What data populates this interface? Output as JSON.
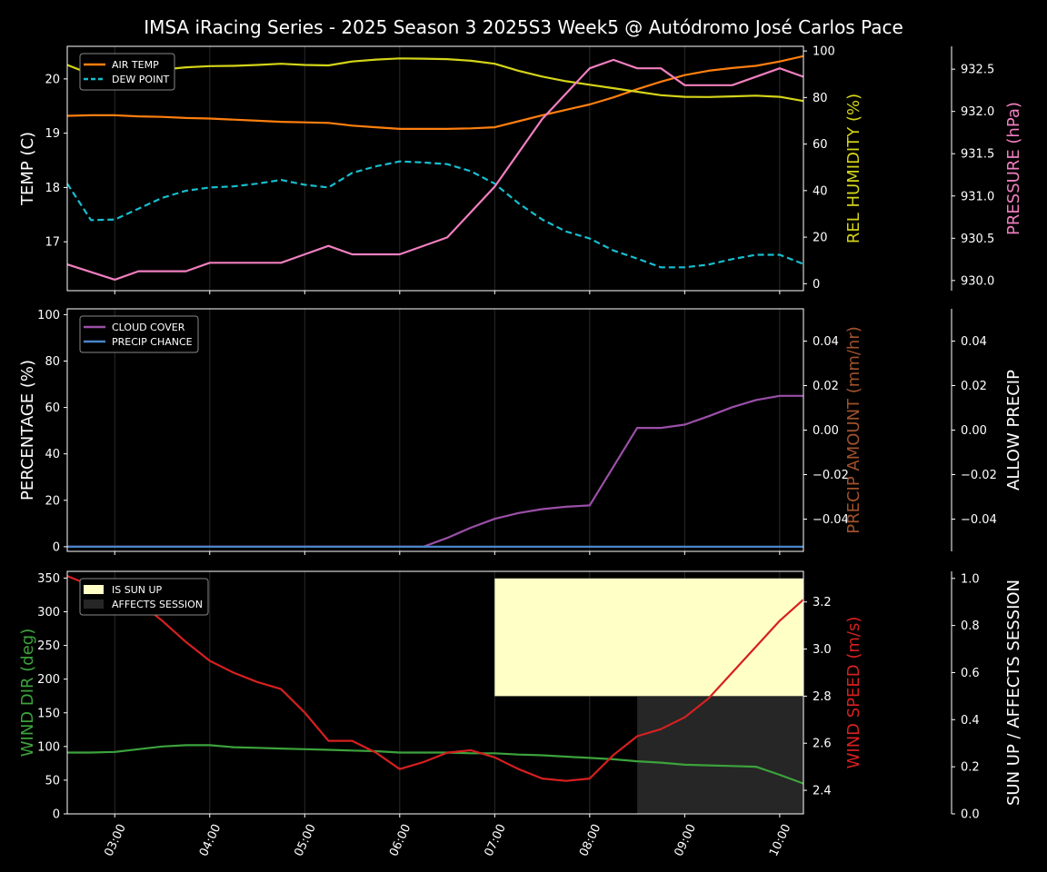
{
  "title": "IMSA iRacing Series - 2025 Season 3 2025S3 Week5 @ Autódromo José Carlos Pace",
  "x_ticks": [
    "03:00",
    "04:00",
    "05:00",
    "06:00",
    "07:00",
    "08:00",
    "09:00",
    "10:00"
  ],
  "colors": {
    "air_temp": "#ff7f0e",
    "dew_point": "#17becf",
    "rel_humidity": "#d4d419",
    "pressure": "#f07fbf",
    "cloud_cover": "#9b4fa8",
    "precip_chance": "#4a86c8",
    "precip_amount": "#a0522d",
    "wind_dir": "#3ca33c",
    "wind_speed": "#d62020",
    "sun_up": "#ffffc6",
    "affects_session": "#262626"
  },
  "chart_data": [
    {
      "type": "line",
      "x_unit": "hour",
      "xlim": [
        2.5,
        10.25
      ],
      "axes": {
        "left": {
          "label": "TEMP (C)",
          "ylim": [
            16.1,
            20.6
          ],
          "ticks": [
            17,
            18,
            19,
            20
          ]
        },
        "right": {
          "label": "REL HUMIDITY (%)",
          "ylim": [
            -3,
            102
          ],
          "ticks": [
            0,
            20,
            40,
            60,
            80,
            100
          ]
        },
        "far_right": {
          "label": "PRESSURE (hPa)",
          "ylim": [
            929.88,
            932.77
          ],
          "ticks": [
            "930.0",
            "930.5",
            "931.0",
            "931.5",
            "932.0",
            "932.5"
          ]
        }
      },
      "legend": {
        "placement": "top-left",
        "entries": [
          "AIR TEMP",
          "DEW POINT"
        ]
      },
      "series": [
        {
          "name": "AIR TEMP",
          "axis": "left",
          "style": "solid",
          "x": [
            2.5,
            2.75,
            3.0,
            3.25,
            3.5,
            3.75,
            4.0,
            4.25,
            4.5,
            4.75,
            5.0,
            5.25,
            5.5,
            5.75,
            6.0,
            6.25,
            6.5,
            6.75,
            7.0,
            7.25,
            7.5,
            7.75,
            8.0,
            8.25,
            8.5,
            8.75,
            9.0,
            9.25,
            9.5,
            9.75,
            10.0,
            10.25
          ],
          "y": [
            19.32,
            19.33,
            19.33,
            19.31,
            19.3,
            19.28,
            19.27,
            19.25,
            19.23,
            19.21,
            19.2,
            19.19,
            19.14,
            19.11,
            19.08,
            19.08,
            19.08,
            19.09,
            19.11,
            19.22,
            19.33,
            19.43,
            19.53,
            19.66,
            19.81,
            19.95,
            20.07,
            20.15,
            20.2,
            20.24,
            20.32,
            20.42
          ]
        },
        {
          "name": "DEW POINT",
          "axis": "left",
          "style": "dashed",
          "x": [
            2.5,
            2.75,
            3.0,
            3.25,
            3.5,
            3.75,
            4.0,
            4.25,
            4.5,
            4.75,
            5.0,
            5.25,
            5.5,
            5.75,
            6.0,
            6.25,
            6.5,
            6.75,
            7.0,
            7.25,
            7.5,
            7.75,
            8.0,
            8.25,
            8.5,
            8.75,
            9.0,
            9.25,
            9.5,
            9.75,
            10.0,
            10.25
          ],
          "y": [
            18.07,
            17.4,
            17.41,
            17.61,
            17.81,
            17.94,
            18.0,
            18.02,
            18.07,
            18.14,
            18.05,
            18.0,
            18.27,
            18.39,
            18.48,
            18.46,
            18.43,
            18.3,
            18.07,
            17.71,
            17.41,
            17.19,
            17.06,
            16.84,
            16.69,
            16.53,
            16.53,
            16.58,
            16.68,
            16.76,
            16.76,
            16.59
          ]
        },
        {
          "name": "REL HUMIDITY",
          "axis": "right",
          "style": "solid",
          "x": [
            2.5,
            2.75,
            3.0,
            3.25,
            3.5,
            3.75,
            4.0,
            4.25,
            4.5,
            4.75,
            5.0,
            5.25,
            5.5,
            5.75,
            6.0,
            6.25,
            6.5,
            6.75,
            7.0,
            7.25,
            7.5,
            7.75,
            8.0,
            8.25,
            8.5,
            8.75,
            9.0,
            9.25,
            9.5,
            9.75,
            10.0,
            10.25
          ],
          "y": [
            94,
            90,
            90,
            91,
            92,
            93,
            93.5,
            93.6,
            94,
            94.5,
            94,
            93.8,
            95.5,
            96.3,
            96.8,
            96.7,
            96.5,
            95.8,
            94.5,
            91.5,
            89,
            87,
            85.5,
            84,
            82.5,
            81,
            80.3,
            80.2,
            80.5,
            80.8,
            80.3,
            78.5
          ]
        },
        {
          "name": "PRESSURE",
          "axis": "far_right",
          "style": "solid",
          "x": [
            2.5,
            3.0,
            3.25,
            3.5,
            3.75,
            4.0,
            4.25,
            4.5,
            4.75,
            5.0,
            5.25,
            5.5,
            5.75,
            6.0,
            6.5,
            7.0,
            7.5,
            8.0,
            8.25,
            8.5,
            8.75,
            9.0,
            9.25,
            9.5,
            10.0,
            10.25
          ],
          "y": [
            930.19,
            930.01,
            930.11,
            930.11,
            930.11,
            930.21,
            930.21,
            930.21,
            930.21,
            930.31,
            930.41,
            930.31,
            930.31,
            930.31,
            930.51,
            931.11,
            931.91,
            932.51,
            932.61,
            932.51,
            932.51,
            932.31,
            932.31,
            932.31,
            932.51,
            932.41
          ]
        }
      ]
    },
    {
      "type": "line",
      "x_unit": "hour",
      "xlim": [
        2.5,
        10.25
      ],
      "axes": {
        "left": {
          "label": "PERCENTAGE (%)",
          "ylim": [
            -2,
            102.5
          ],
          "ticks": [
            0,
            20,
            40,
            60,
            80,
            100
          ]
        },
        "right": {
          "label": "PRECIP AMOUNT (mm/hr)",
          "ylim": [
            -0.0545,
            0.0545
          ],
          "ticks": [
            "−0.04",
            "−0.02",
            "0.00",
            "0.02",
            "0.04"
          ]
        },
        "far_right": {
          "label": "ALLOW PRECIP",
          "ylim": [
            -0.0545,
            0.0545
          ],
          "ticks": [
            "−0.04",
            "−0.02",
            "0.00",
            "0.02",
            "0.04"
          ]
        }
      },
      "legend": {
        "placement": "top-left",
        "entries": [
          "CLOUD COVER",
          "PRECIP CHANCE"
        ]
      },
      "series": [
        {
          "name": "CLOUD COVER",
          "axis": "left",
          "style": "solid",
          "x": [
            2.5,
            6.25,
            6.5,
            6.75,
            7.0,
            7.25,
            7.5,
            7.75,
            8.0,
            8.5,
            8.75,
            9.0,
            9.25,
            9.5,
            9.75,
            10.0,
            10.25
          ],
          "y": [
            0,
            0,
            3.8,
            8.2,
            12,
            14.5,
            16.2,
            17.2,
            17.8,
            51.2,
            51.2,
            52.6,
            56.2,
            60.1,
            63.2,
            65,
            65
          ]
        },
        {
          "name": "PRECIP CHANCE",
          "axis": "left",
          "style": "solid",
          "x": [
            2.5,
            10.25
          ],
          "y": [
            0,
            0
          ]
        }
      ]
    },
    {
      "type": "line",
      "x_unit": "hour",
      "xlim": [
        2.5,
        10.25
      ],
      "axes": {
        "left": {
          "label": "WIND DIR (deg)",
          "ylim": [
            0,
            360
          ],
          "ticks": [
            0,
            50,
            100,
            150,
            200,
            250,
            300,
            350
          ]
        },
        "right": {
          "label": "WIND SPEED (m/s)",
          "ylim": [
            2.3,
            3.33
          ],
          "ticks": [
            "2.4",
            "2.6",
            "2.8",
            "3.0",
            "3.2"
          ]
        },
        "far_right": {
          "label": "SUN UP / AFFECTS SESSION",
          "ylim": [
            0,
            1.03
          ],
          "ticks": [
            "0.0",
            "0.2",
            "0.4",
            "0.6",
            "0.8",
            "1.0"
          ]
        }
      },
      "legend": {
        "placement": "top-left",
        "entries": [
          "IS SUN UP",
          "AFFECTS SESSION"
        ]
      },
      "bands": [
        {
          "name": "IS SUN UP",
          "x_range": [
            7.0,
            10.25
          ],
          "y_range": [
            0.5,
            1.0
          ],
          "axis": "far_right"
        },
        {
          "name": "AFFECTS SESSION",
          "x_range": [
            8.5,
            10.25
          ],
          "y_range": [
            0,
            0.5
          ],
          "axis": "far_right"
        }
      ],
      "series": [
        {
          "name": "WIND DIR",
          "axis": "left",
          "style": "solid",
          "x": [
            2.5,
            2.75,
            3.0,
            3.25,
            3.5,
            3.75,
            4.0,
            4.25,
            4.5,
            4.75,
            5.0,
            5.25,
            5.5,
            5.75,
            6.0,
            6.25,
            6.5,
            6.75,
            7.0,
            7.25,
            7.5,
            7.75,
            8.0,
            8.25,
            8.5,
            8.75,
            9.0,
            9.25,
            9.5,
            9.75,
            10.0,
            10.25
          ],
          "y": [
            91,
            91,
            92,
            96,
            100,
            102,
            102,
            99,
            98,
            97,
            96,
            95,
            94,
            93,
            91,
            91,
            91,
            90,
            90,
            88,
            87,
            85,
            83,
            81,
            78,
            76,
            73,
            72,
            71,
            70,
            58,
            45
          ]
        },
        {
          "name": "WIND SPEED",
          "axis": "right",
          "style": "solid",
          "x": [
            2.5,
            2.75,
            3.0,
            3.25,
            3.5,
            3.75,
            4.0,
            4.25,
            4.5,
            4.75,
            5.0,
            5.25,
            5.5,
            5.75,
            6.0,
            6.25,
            6.5,
            6.75,
            7.0,
            7.25,
            7.5,
            7.75,
            8.0,
            8.25,
            8.5,
            8.75,
            9.0,
            9.25,
            9.5,
            9.75,
            10.0,
            10.25
          ],
          "y": [
            3.31,
            3.27,
            3.28,
            3.2,
            3.12,
            3.03,
            2.95,
            2.9,
            2.86,
            2.83,
            2.73,
            2.61,
            2.61,
            2.56,
            2.49,
            2.52,
            2.56,
            2.57,
            2.54,
            2.49,
            2.45,
            2.44,
            2.45,
            2.55,
            2.63,
            2.66,
            2.71,
            2.79,
            2.9,
            3.01,
            3.12,
            3.21
          ]
        }
      ]
    }
  ]
}
